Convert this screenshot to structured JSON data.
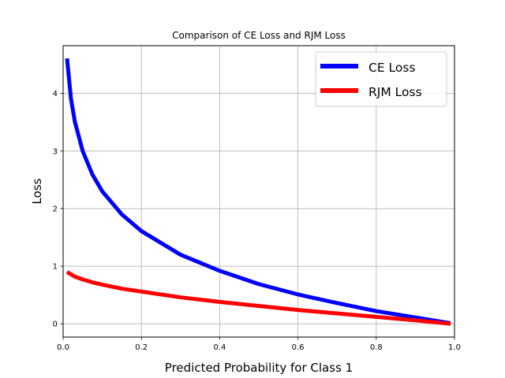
{
  "chart_data": {
    "type": "line",
    "title": "Comparison of CE Loss and RJM Loss",
    "xlabel": "Predicted Probability for Class 1",
    "ylabel": "Loss",
    "xlim": [
      0.0,
      1.0
    ],
    "ylim": [
      -0.23,
      4.83
    ],
    "xticks": [
      "0.0",
      "0.2",
      "0.4",
      "0.6",
      "0.8",
      "1.0"
    ],
    "yticks": [
      "0",
      "1",
      "2",
      "3",
      "4"
    ],
    "grid": true,
    "legend_position": "top-right",
    "x": [
      0.01,
      0.02,
      0.03,
      0.05,
      0.075,
      0.1,
      0.15,
      0.2,
      0.3,
      0.4,
      0.5,
      0.6,
      0.7,
      0.8,
      0.9,
      0.99
    ],
    "series": [
      {
        "name": "CE Loss",
        "color": "#0000ff",
        "values": [
          4.61,
          3.91,
          3.51,
          3.0,
          2.59,
          2.3,
          1.9,
          1.61,
          1.2,
          0.92,
          0.69,
          0.51,
          0.36,
          0.22,
          0.11,
          0.01
        ]
      },
      {
        "name": "RJM Loss",
        "color": "#ff0000",
        "values": [
          0.9,
          0.86,
          0.82,
          0.77,
          0.72,
          0.68,
          0.61,
          0.56,
          0.46,
          0.38,
          0.31,
          0.24,
          0.18,
          0.12,
          0.06,
          0.0
        ]
      }
    ]
  }
}
